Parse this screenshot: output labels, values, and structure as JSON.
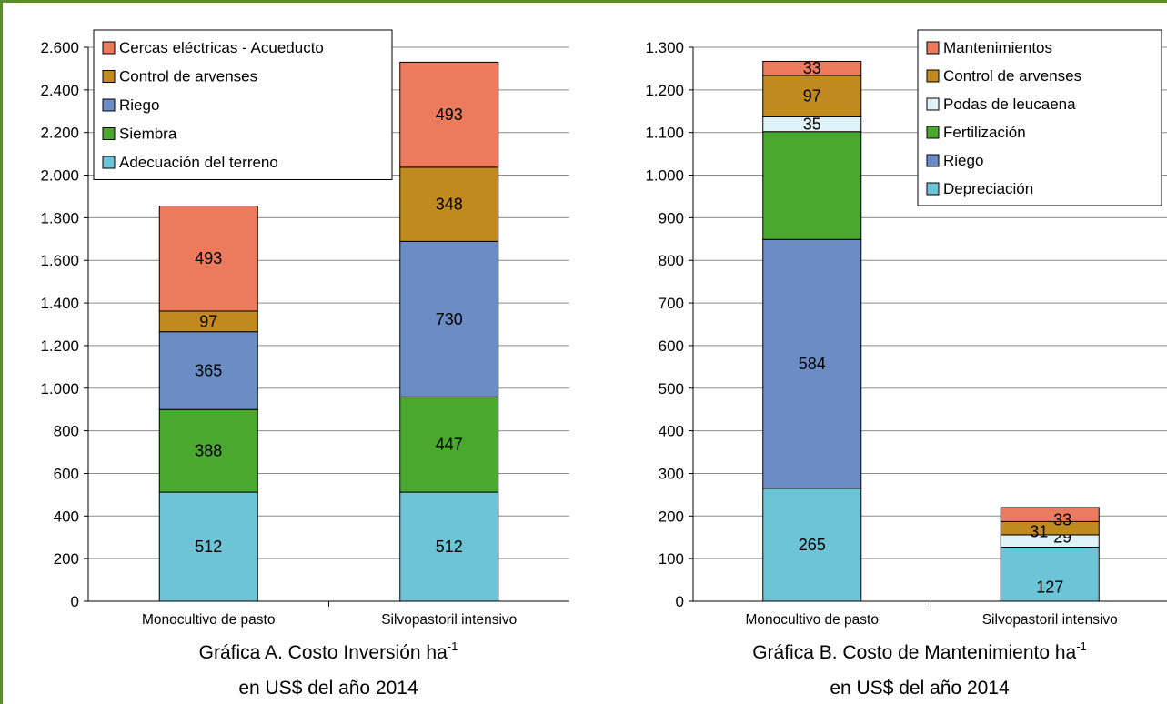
{
  "chart_data": [
    {
      "type": "bar",
      "stacked": true,
      "title_line1": "Gráfica A. Costo Inversión ha",
      "title_sup": "-1",
      "title_line2": "en US$ del año 2014",
      "categories": [
        "Monocultivo de pasto",
        "Silvopastoril intensivo"
      ],
      "ylim": [
        0,
        2600
      ],
      "yticks": [
        0,
        200,
        400,
        600,
        800,
        1000,
        1200,
        1400,
        1600,
        1800,
        2000,
        2200,
        2400,
        2600
      ],
      "ytick_labels": [
        "0",
        "200",
        "400",
        "600",
        "800",
        "1.000",
        "1.200",
        "1.400",
        "1.600",
        "1.800",
        "2.000",
        "2.200",
        "2.400",
        "2.600"
      ],
      "grid": true,
      "legend_position": "top-left",
      "series": [
        {
          "name": "Adecuación del terreno",
          "color": "#6cc4d6",
          "values": [
            512,
            512
          ]
        },
        {
          "name": "Siembra",
          "color": "#4aa82e",
          "values": [
            388,
            447
          ]
        },
        {
          "name": "Riego",
          "color": "#6b8cc4",
          "values": [
            365,
            730
          ]
        },
        {
          "name": "Control de arvenses",
          "color": "#c08a1e",
          "values": [
            97,
            348
          ]
        },
        {
          "name": "Cercas eléctricas - Acueducto",
          "color": "#ec7a5c",
          "values": [
            493,
            493
          ]
        }
      ]
    },
    {
      "type": "bar",
      "stacked": true,
      "title_line1": "Gráfica B. Costo de Mantenimiento ha",
      "title_sup": "-1",
      "title_line2": "en US$ del año 2014",
      "categories": [
        "Monocultivo de pasto",
        "Silvopastoril intensivo"
      ],
      "ylim": [
        0,
        1300
      ],
      "yticks": [
        0,
        100,
        200,
        300,
        400,
        500,
        600,
        700,
        800,
        900,
        1000,
        1100,
        1200,
        1300
      ],
      "ytick_labels": [
        "0",
        "100",
        "200",
        "300",
        "400",
        "500",
        "600",
        "700",
        "800",
        "900",
        "1.000",
        "1.100",
        "1.200",
        "1.300"
      ],
      "grid": true,
      "legend_position": "top-right",
      "series": [
        {
          "name": "Depreciación",
          "color": "#6cc4d6",
          "values": [
            265,
            127
          ]
        },
        {
          "name": "Riego",
          "color": "#6b8cc4",
          "values": [
            584,
            0
          ]
        },
        {
          "name": "Fertilización",
          "color": "#4aa82e",
          "values": [
            253,
            0
          ]
        },
        {
          "name": "Podas de leucaena",
          "color": "#def2f8",
          "values": [
            35,
            29
          ]
        },
        {
          "name": "Control de arvenses",
          "color": "#c08a1e",
          "values": [
            97,
            31
          ]
        },
        {
          "name": "Mantenimientos",
          "color": "#ec7a5c",
          "values": [
            33,
            33
          ]
        }
      ],
      "data_labels": [
        [
          "265",
          "584",
          "",
          "35",
          "97",
          "33"
        ],
        [
          "127",
          "0",
          "",
          "29",
          "31",
          "33"
        ]
      ]
    }
  ]
}
